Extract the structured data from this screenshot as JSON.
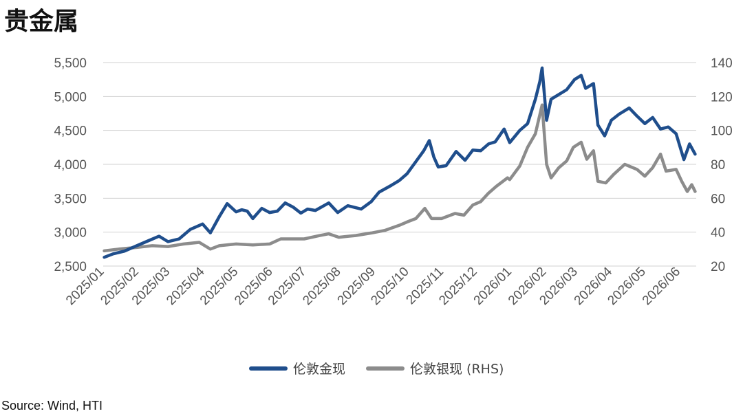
{
  "title": "贵金属",
  "source": "Source: Wind, HTI",
  "chart_data": {
    "type": "line",
    "x_ticks": [
      "2025/01",
      "2025/02",
      "2025/03",
      "2025/04",
      "2025/05",
      "2025/06",
      "2025/07",
      "2025/08",
      "2025/09",
      "2025/10",
      "2025/11",
      "2025/12",
      "2026/01",
      "2026/02",
      "2026/03",
      "2026/04",
      "2026/05",
      "2026/06"
    ],
    "y_left": {
      "ticks": [
        "2,500",
        "3,000",
        "3,500",
        "4,000",
        "4,500",
        "5,000",
        "5,500"
      ],
      "range": [
        2500,
        5500
      ]
    },
    "y_right": {
      "ticks": [
        "20",
        "40",
        "60",
        "80",
        "100",
        "120",
        "140"
      ],
      "range": [
        20,
        140
      ]
    },
    "grid": true,
    "legend_position": "bottom",
    "series": [
      {
        "name": "伦敦金现",
        "axis": "left",
        "color": "#1f4e8c",
        "points": [
          [
            "2025-01-02",
            2630
          ],
          [
            "2025-01-10",
            2680
          ],
          [
            "2025-01-20",
            2720
          ],
          [
            "2025-01-31",
            2800
          ],
          [
            "2025-02-10",
            2870
          ],
          [
            "2025-02-20",
            2940
          ],
          [
            "2025-02-28",
            2860
          ],
          [
            "2025-03-10",
            2900
          ],
          [
            "2025-03-20",
            3040
          ],
          [
            "2025-03-31",
            3120
          ],
          [
            "2025-04-07",
            2990
          ],
          [
            "2025-04-15",
            3230
          ],
          [
            "2025-04-22",
            3420
          ],
          [
            "2025-04-30",
            3300
          ],
          [
            "2025-05-05",
            3330
          ],
          [
            "2025-05-10",
            3310
          ],
          [
            "2025-05-15",
            3200
          ],
          [
            "2025-05-23",
            3350
          ],
          [
            "2025-05-30",
            3290
          ],
          [
            "2025-06-06",
            3310
          ],
          [
            "2025-06-13",
            3430
          ],
          [
            "2025-06-20",
            3370
          ],
          [
            "2025-06-27",
            3280
          ],
          [
            "2025-07-03",
            3340
          ],
          [
            "2025-07-10",
            3320
          ],
          [
            "2025-07-22",
            3430
          ],
          [
            "2025-07-30",
            3290
          ],
          [
            "2025-08-08",
            3390
          ],
          [
            "2025-08-20",
            3340
          ],
          [
            "2025-08-29",
            3450
          ],
          [
            "2025-09-05",
            3590
          ],
          [
            "2025-09-16",
            3690
          ],
          [
            "2025-09-23",
            3760
          ],
          [
            "2025-09-30",
            3860
          ],
          [
            "2025-10-08",
            4040
          ],
          [
            "2025-10-15",
            4200
          ],
          [
            "2025-10-20",
            4350
          ],
          [
            "2025-10-24",
            4110
          ],
          [
            "2025-10-28",
            3960
          ],
          [
            "2025-11-04",
            3980
          ],
          [
            "2025-11-13",
            4190
          ],
          [
            "2025-11-21",
            4060
          ],
          [
            "2025-11-28",
            4210
          ],
          [
            "2025-12-05",
            4200
          ],
          [
            "2025-12-12",
            4300
          ],
          [
            "2025-12-18",
            4330
          ],
          [
            "2025-12-26",
            4520
          ],
          [
            "2025-12-31",
            4320
          ],
          [
            "2026-01-09",
            4500
          ],
          [
            "2026-01-16",
            4600
          ],
          [
            "2026-01-23",
            4960
          ],
          [
            "2026-01-27",
            5220
          ],
          [
            "2026-01-29",
            5420
          ],
          [
            "2026-02-02",
            4650
          ],
          [
            "2026-02-06",
            4960
          ],
          [
            "2026-02-13",
            5030
          ],
          [
            "2026-02-20",
            5100
          ],
          [
            "2026-02-27",
            5250
          ],
          [
            "2026-03-05",
            5310
          ],
          [
            "2026-03-09",
            5120
          ],
          [
            "2026-03-16",
            5190
          ],
          [
            "2026-03-20",
            4580
          ],
          [
            "2026-03-26",
            4420
          ],
          [
            "2026-04-01",
            4650
          ],
          [
            "2026-04-08",
            4740
          ],
          [
            "2026-04-17",
            4830
          ],
          [
            "2026-04-24",
            4710
          ],
          [
            "2026-05-01",
            4600
          ],
          [
            "2026-05-08",
            4690
          ],
          [
            "2026-05-15",
            4520
          ],
          [
            "2026-05-22",
            4550
          ],
          [
            "2026-05-29",
            4450
          ],
          [
            "2026-06-05",
            4070
          ],
          [
            "2026-06-10",
            4300
          ],
          [
            "2026-06-15",
            4150
          ]
        ]
      },
      {
        "name": "伦敦银现 (RHS)",
        "axis": "right",
        "color": "#8c8c8c",
        "points": [
          [
            "2025-01-02",
            29
          ],
          [
            "2025-01-15",
            30
          ],
          [
            "2025-01-31",
            31
          ],
          [
            "2025-02-14",
            32
          ],
          [
            "2025-02-28",
            31.5
          ],
          [
            "2025-03-14",
            33
          ],
          [
            "2025-03-28",
            34
          ],
          [
            "2025-04-07",
            30
          ],
          [
            "2025-04-15",
            32
          ],
          [
            "2025-04-30",
            33
          ],
          [
            "2025-05-15",
            32.5
          ],
          [
            "2025-05-30",
            33
          ],
          [
            "2025-06-09",
            36
          ],
          [
            "2025-06-20",
            36
          ],
          [
            "2025-06-30",
            36
          ],
          [
            "2025-07-14",
            38
          ],
          [
            "2025-07-22",
            39
          ],
          [
            "2025-07-31",
            37
          ],
          [
            "2025-08-15",
            38
          ],
          [
            "2025-08-29",
            39.5
          ],
          [
            "2025-09-10",
            41
          ],
          [
            "2025-09-23",
            44
          ],
          [
            "2025-09-30",
            46
          ],
          [
            "2025-10-08",
            48
          ],
          [
            "2025-10-16",
            54
          ],
          [
            "2025-10-22",
            48
          ],
          [
            "2025-10-31",
            48
          ],
          [
            "2025-11-12",
            51
          ],
          [
            "2025-11-20",
            50
          ],
          [
            "2025-11-28",
            56
          ],
          [
            "2025-12-05",
            58
          ],
          [
            "2025-12-12",
            63
          ],
          [
            "2025-12-19",
            67
          ],
          [
            "2025-12-29",
            72
          ],
          [
            "2025-12-31",
            71
          ],
          [
            "2026-01-09",
            79
          ],
          [
            "2026-01-16",
            90
          ],
          [
            "2026-01-23",
            98
          ],
          [
            "2026-01-29",
            115
          ],
          [
            "2026-02-02",
            80
          ],
          [
            "2026-02-06",
            72
          ],
          [
            "2026-02-13",
            78
          ],
          [
            "2026-02-20",
            82
          ],
          [
            "2026-02-26",
            90
          ],
          [
            "2026-03-05",
            93
          ],
          [
            "2026-03-10",
            83
          ],
          [
            "2026-03-16",
            88
          ],
          [
            "2026-03-20",
            70
          ],
          [
            "2026-03-27",
            69
          ],
          [
            "2026-04-03",
            74
          ],
          [
            "2026-04-13",
            80
          ],
          [
            "2026-04-24",
            77
          ],
          [
            "2026-05-01",
            73
          ],
          [
            "2026-05-08",
            78
          ],
          [
            "2026-05-15",
            86
          ],
          [
            "2026-05-20",
            76
          ],
          [
            "2026-05-29",
            77
          ],
          [
            "2026-06-03",
            70
          ],
          [
            "2026-06-08",
            64
          ],
          [
            "2026-06-12",
            68
          ],
          [
            "2026-06-15",
            64
          ]
        ]
      }
    ]
  }
}
